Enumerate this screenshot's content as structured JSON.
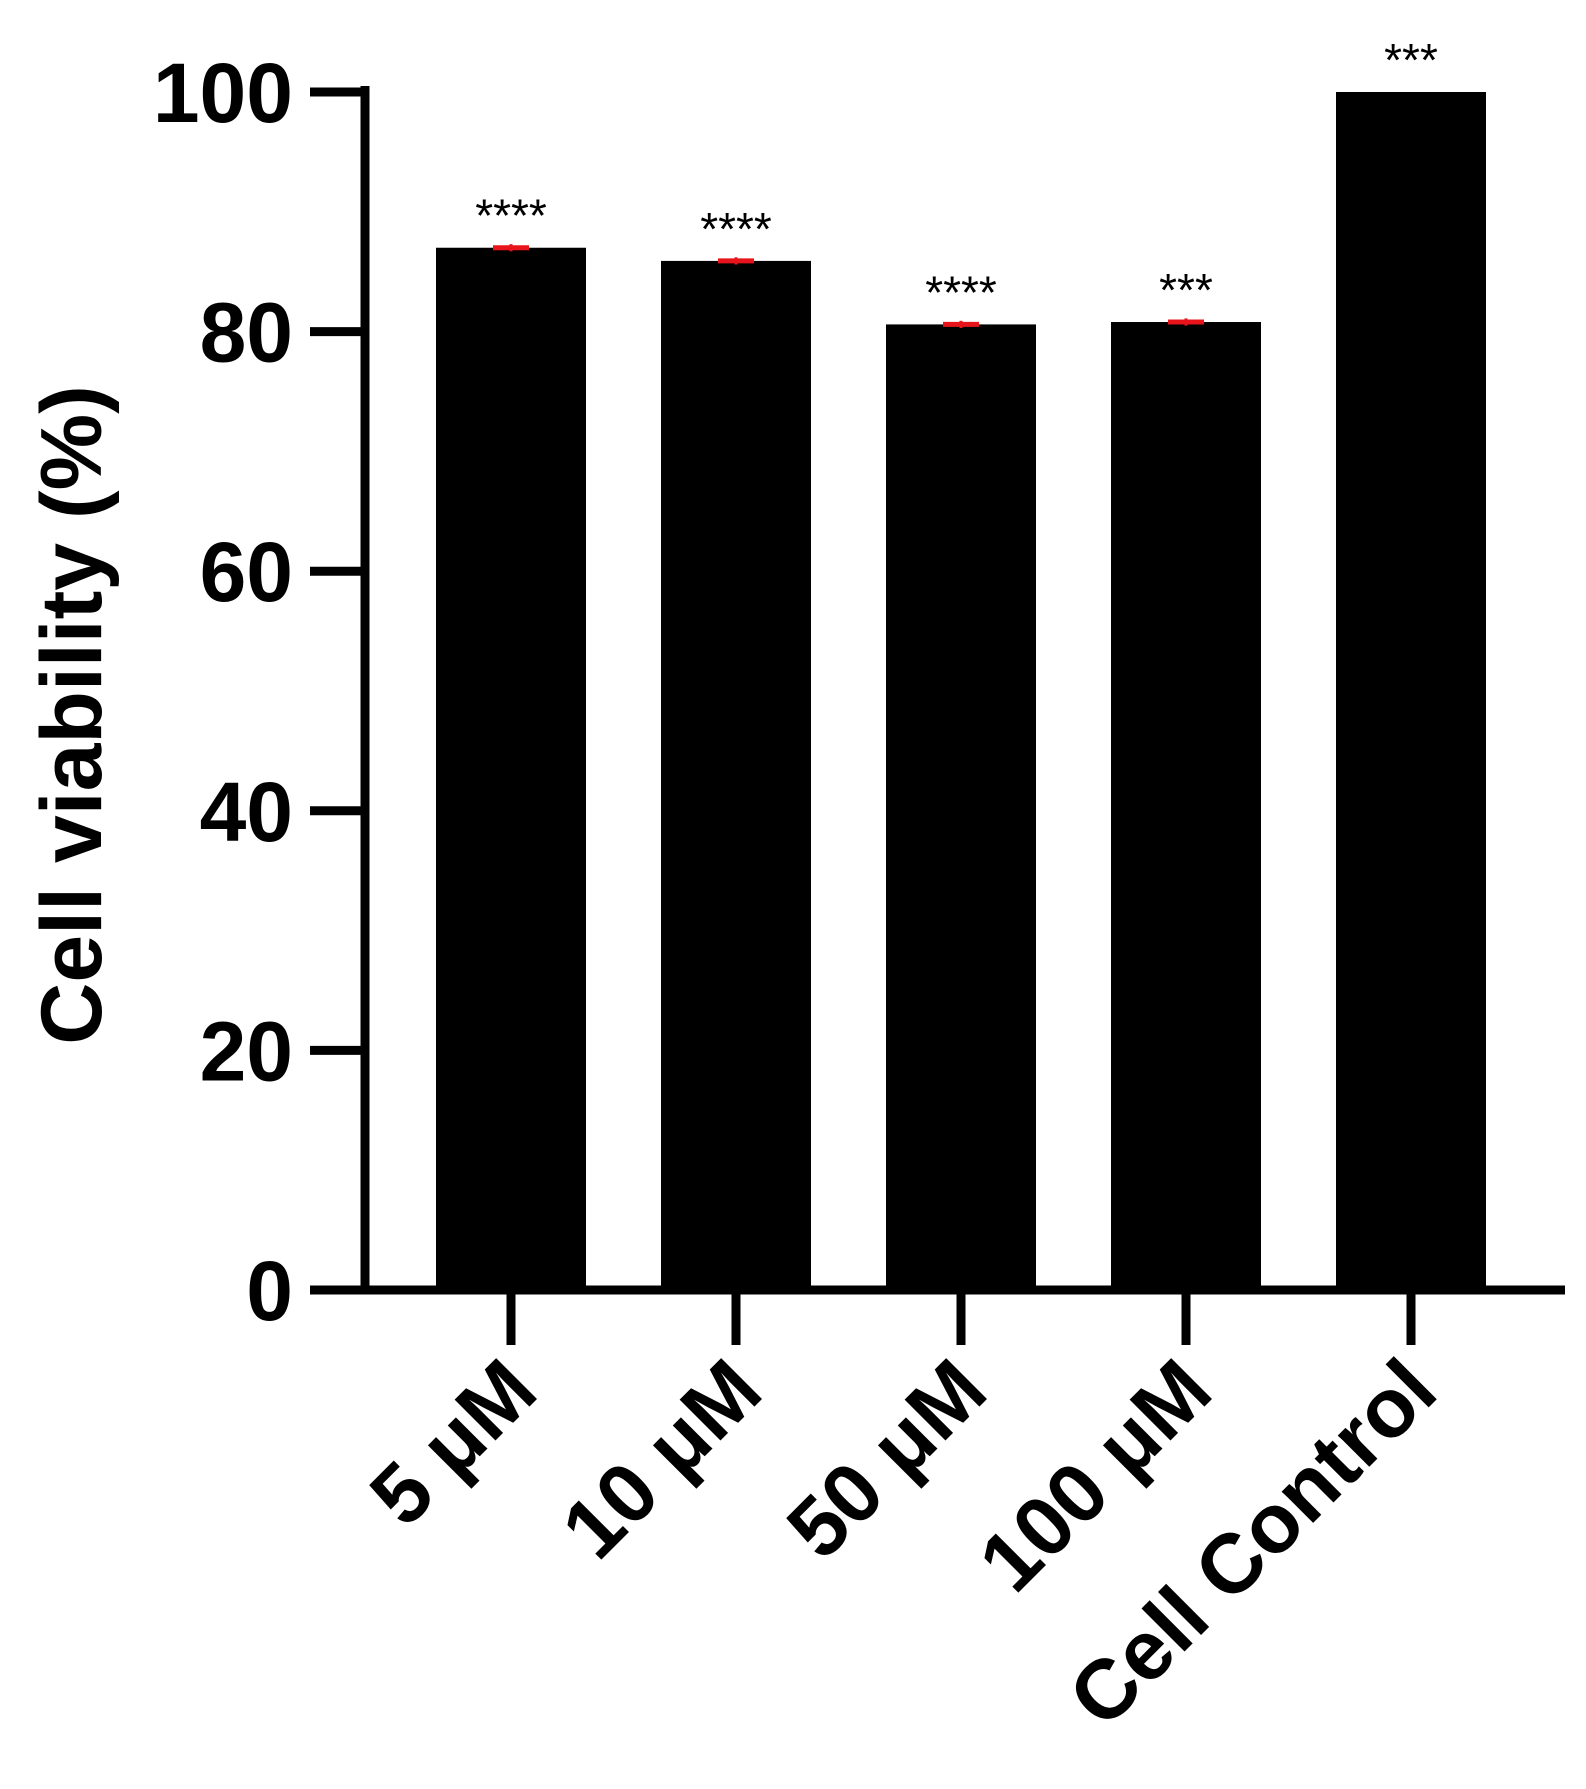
{
  "chart_data": {
    "type": "bar",
    "title": "",
    "xlabel": "",
    "ylabel": "Cell viability (%)",
    "ylim": [
      0,
      100
    ],
    "yticks": [
      "0",
      "20",
      "40",
      "60",
      "80",
      "100"
    ],
    "categories": [
      "5 μM",
      "10 μM",
      "50 μM",
      "100 μM",
      "Cell Control"
    ],
    "values": [
      87.0,
      85.9,
      80.6,
      80.8,
      100.0
    ],
    "errors": [
      0.3,
      0.3,
      0.3,
      0.3,
      0.0
    ],
    "annotations": [
      "****",
      "****",
      "****",
      "***",
      "***"
    ],
    "grid": false,
    "legend": "none",
    "colors": {
      "bar": "#000000",
      "error_bar": "#e8141b",
      "axis": "#000000",
      "text": "#000000"
    }
  }
}
